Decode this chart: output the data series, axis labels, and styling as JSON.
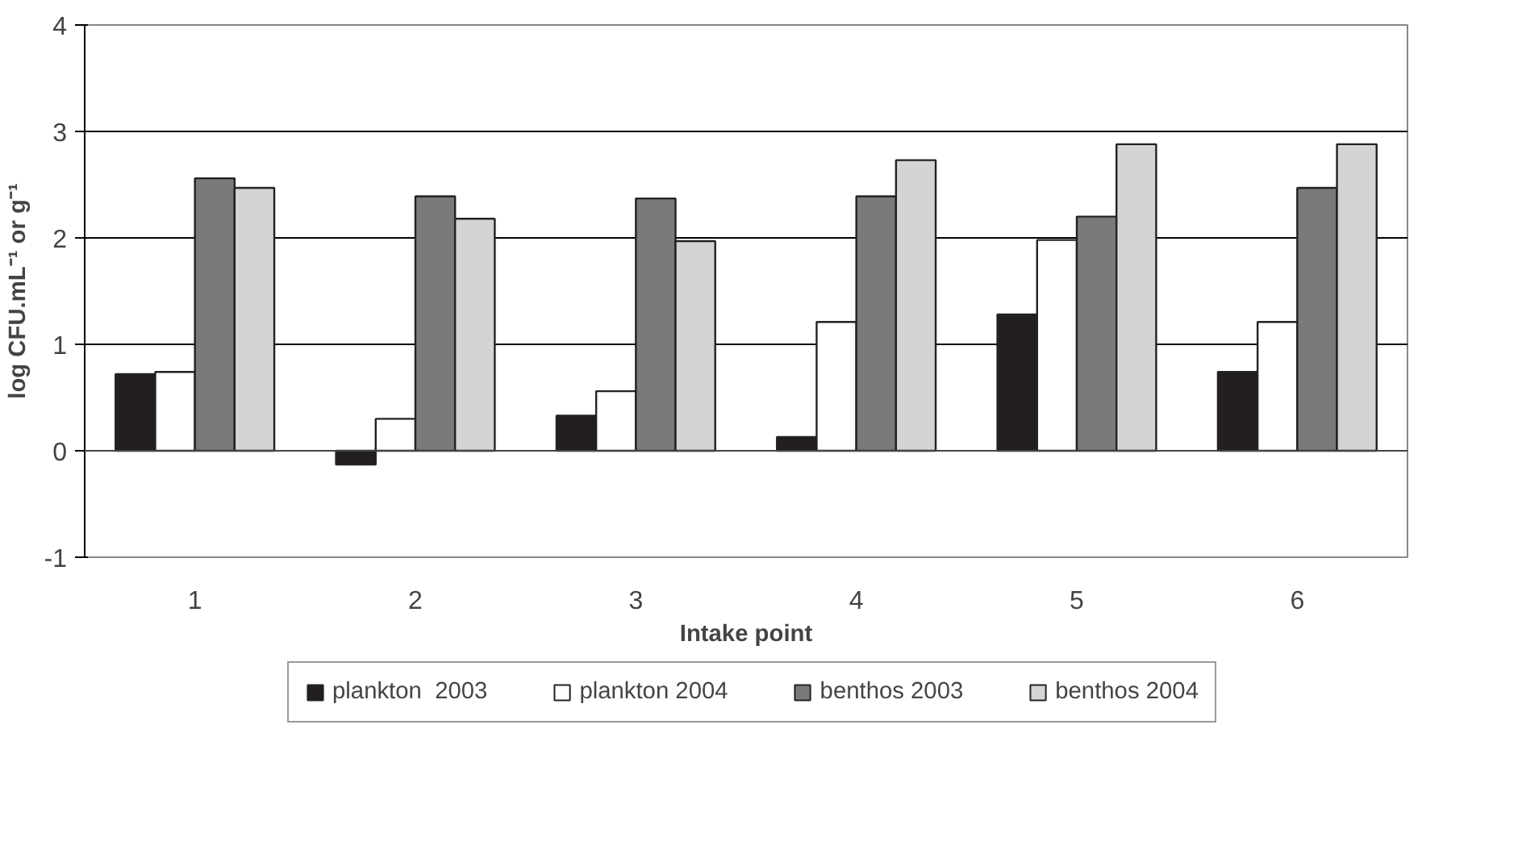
{
  "chart_data": {
    "type": "bar",
    "xlabel": "Intake point",
    "ylabel": "log CFU.mL⁻¹ or g⁻¹",
    "categories": [
      "1",
      "2",
      "3",
      "4",
      "5",
      "6"
    ],
    "series": [
      {
        "name": "plankton  2003",
        "color": "#231f20",
        "values": [
          0.72,
          -0.13,
          0.33,
          0.13,
          1.28,
          0.74
        ]
      },
      {
        "name": "plankton 2004",
        "color": "#ffffff",
        "values": [
          0.74,
          0.3,
          0.56,
          1.21,
          1.98,
          1.21
        ]
      },
      {
        "name": "benthos 2003",
        "color": "#7a7a7a",
        "values": [
          2.56,
          2.39,
          2.37,
          2.39,
          2.2,
          2.47
        ]
      },
      {
        "name": "benthos 2004",
        "color": "#d4d4d4",
        "values": [
          2.47,
          2.18,
          1.97,
          2.73,
          2.88,
          2.88
        ]
      }
    ],
    "ylim": [
      -1,
      4
    ],
    "yticks": [
      -1,
      0,
      1,
      2,
      3,
      4
    ],
    "grid": "y",
    "legend": "bottom"
  }
}
